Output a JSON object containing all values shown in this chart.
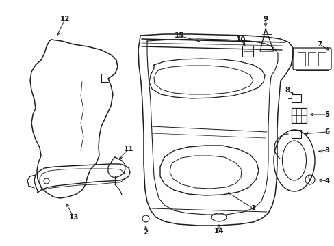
{
  "background_color": "#ffffff",
  "line_color": "#1a1a1a",
  "fig_width": 4.89,
  "fig_height": 3.6,
  "dpi": 100,
  "label_fontsize": 7.5
}
